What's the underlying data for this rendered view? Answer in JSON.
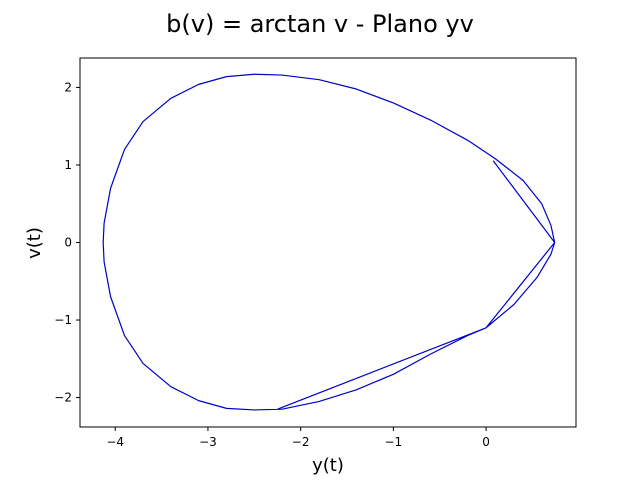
{
  "chart_data": {
    "type": "line",
    "title": "b(v) = arctan v - Plano yv",
    "xlabel": "y(t)",
    "ylabel": "v(t)",
    "xlim": [
      -4.38,
      0.97
    ],
    "ylim": [
      -2.38,
      2.38
    ],
    "xticks": [
      -4,
      -3,
      -2,
      -1,
      0
    ],
    "xtick_labels": [
      "−4",
      "−3",
      "−2",
      "−1",
      "0"
    ],
    "yticks": [
      -2,
      -1,
      0,
      1,
      2
    ],
    "ytick_labels": [
      "−2",
      "−1",
      "0",
      "1",
      "2"
    ],
    "grid": false,
    "series": [
      {
        "color": "#0000cc",
        "x": [
          0.74,
          0.7,
          0.6,
          0.4,
          0.1,
          -0.2,
          -0.6,
          -1.0,
          -1.4,
          -1.8,
          -2.2,
          -2.5,
          -2.8,
          -3.1,
          -3.4,
          -3.7,
          -3.9,
          -4.05,
          -4.12,
          -4.13,
          -4.12,
          -4.05,
          -3.9,
          -3.7,
          -3.4,
          -3.1,
          -2.8,
          -2.5,
          -2.2,
          -1.8,
          -1.4,
          -1.0,
          -0.6,
          -0.2,
          0.0,
          0.3,
          0.55,
          0.7,
          0.74,
          0.08,
          0.74,
          0.0,
          -2.25
        ],
        "y": [
          0.0,
          0.22,
          0.5,
          0.8,
          1.08,
          1.32,
          1.58,
          1.8,
          1.98,
          2.1,
          2.16,
          2.17,
          2.14,
          2.04,
          1.86,
          1.56,
          1.2,
          0.7,
          0.25,
          0.0,
          -0.25,
          -0.7,
          -1.2,
          -1.56,
          -1.86,
          -2.04,
          -2.14,
          -2.16,
          -2.15,
          -2.05,
          -1.9,
          -1.7,
          -1.44,
          -1.2,
          -1.1,
          -0.8,
          -0.45,
          -0.15,
          0.0,
          1.05,
          0.0,
          -1.1,
          -2.15
        ]
      }
    ]
  }
}
